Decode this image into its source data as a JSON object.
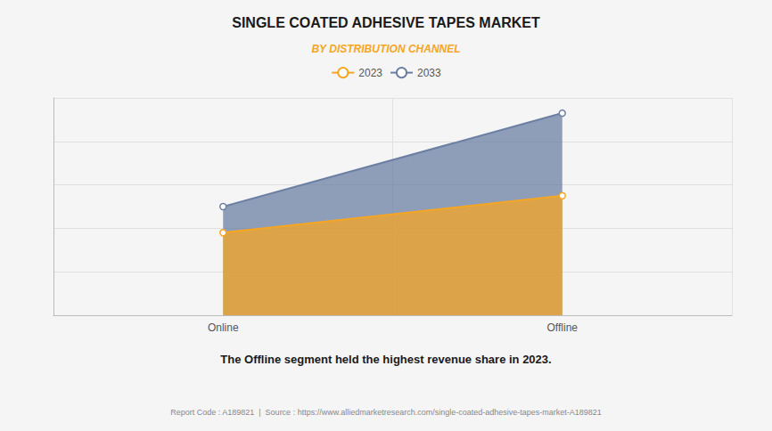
{
  "chart_data": {
    "type": "line",
    "title": "SINGLE COATED ADHESIVE TAPES MARKET",
    "subtitle": "BY DISTRIBUTION CHANNEL",
    "categories": [
      "Online",
      "Offline"
    ],
    "series": [
      {
        "name": "2023",
        "color": "#f5a623",
        "values": [
          0.38,
          0.55
        ]
      },
      {
        "name": "2033",
        "color": "#6b7fa3",
        "values": [
          0.5,
          0.93
        ]
      }
    ],
    "ylim": [
      0,
      1.0
    ],
    "yticks": [
      0,
      0.2,
      0.4,
      0.6,
      0.8,
      1.0
    ],
    "grid": true,
    "legend": "top",
    "tick_labels": "x",
    "annotations": [
      "The Offline segment held the highest revenue share in 2023.",
      "Report Code : A189821  |  Source : https://www.alliedmarketresearch.com/single-coated-adhesive-tapes-market-A189821"
    ]
  }
}
